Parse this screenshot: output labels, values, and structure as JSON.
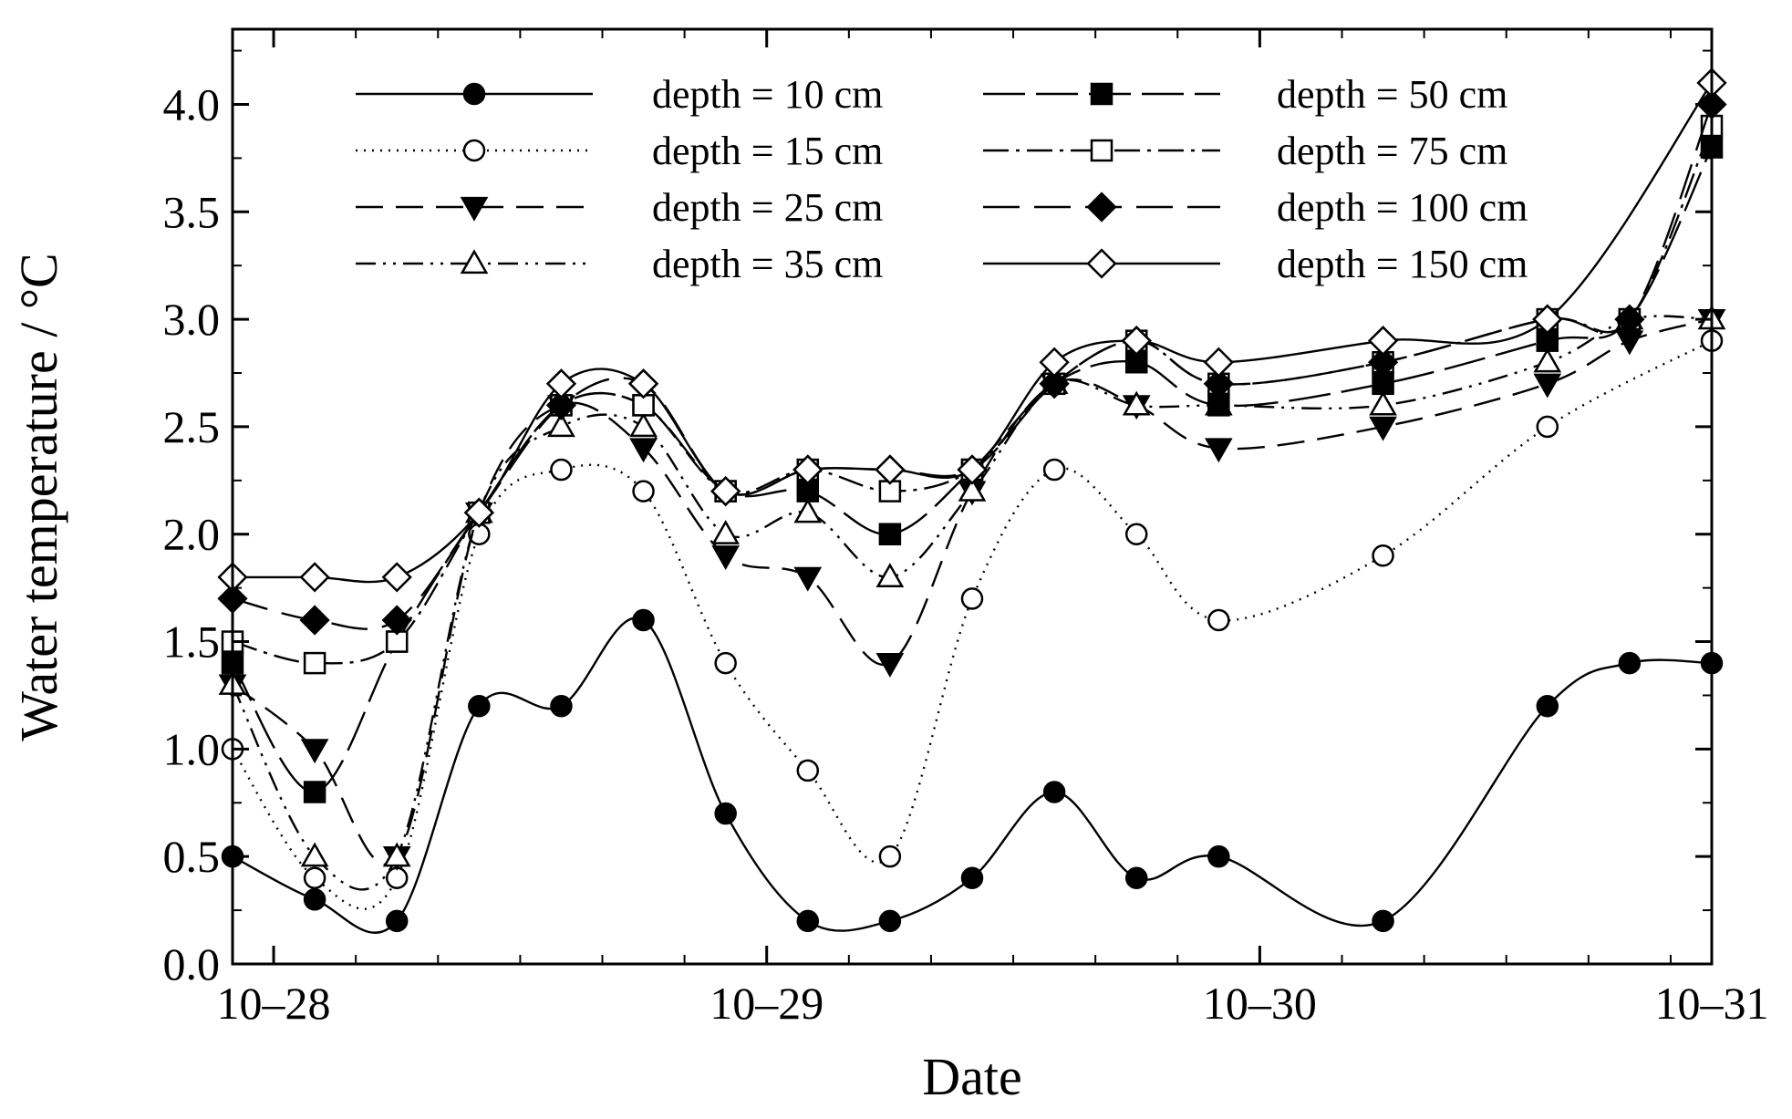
{
  "chart_data": {
    "type": "line",
    "title": "",
    "xlabel": "Date",
    "ylabel": "Water temperature / °C",
    "xlim": [
      -0.25,
      8.75
    ],
    "ylim": [
      0.0,
      4.35
    ],
    "x_ticks": [
      {
        "value": 0.0,
        "label": "10–28"
      },
      {
        "value": 3.0,
        "label": "10–29"
      },
      {
        "value": 6.0,
        "label": "10–30"
      },
      {
        "value": 9.0,
        "label": "10–31"
      }
    ],
    "y_ticks": [
      {
        "value": 0.0,
        "label": "0.0"
      },
      {
        "value": 0.5,
        "label": "0.5"
      },
      {
        "value": 1.0,
        "label": "1.0"
      },
      {
        "value": 1.5,
        "label": "1.5"
      },
      {
        "value": 2.0,
        "label": "2.0"
      },
      {
        "value": 2.5,
        "label": "2.5"
      },
      {
        "value": 3.0,
        "label": "3.0"
      },
      {
        "value": 3.5,
        "label": "3.5"
      },
      {
        "value": 4.0,
        "label": "4.0"
      }
    ],
    "grid": false,
    "legend_position": "top",
    "series": [
      {
        "name": "depth = 10 cm",
        "marker": "circle-filled",
        "dash": "",
        "x": [
          -0.25,
          0.25,
          0.75,
          1.25,
          1.75,
          2.25,
          2.75,
          3.25,
          3.75,
          4.25,
          4.75,
          5.25,
          5.75,
          6.75,
          7.75,
          8.25,
          8.75
        ],
        "y": [
          0.5,
          0.3,
          0.2,
          1.2,
          1.2,
          1.6,
          0.7,
          0.2,
          0.2,
          0.4,
          0.8,
          0.4,
          0.5,
          0.2,
          1.2,
          1.4,
          1.4
        ]
      },
      {
        "name": "depth = 15 cm",
        "marker": "circle-open",
        "dash": "2,7",
        "x": [
          -0.25,
          0.25,
          0.75,
          1.25,
          1.75,
          2.25,
          2.75,
          3.25,
          3.75,
          4.25,
          4.75,
          5.25,
          5.75,
          6.75,
          7.75,
          8.75
        ],
        "y": [
          1.0,
          0.4,
          0.4,
          2.0,
          2.3,
          2.2,
          1.4,
          0.9,
          0.5,
          1.7,
          2.3,
          2.0,
          1.6,
          1.9,
          2.5,
          2.9
        ]
      },
      {
        "name": "depth = 25 cm",
        "marker": "triangle-down-filled",
        "dash": "30,14",
        "x": [
          -0.25,
          0.25,
          0.75,
          1.25,
          1.75,
          2.25,
          2.75,
          3.25,
          3.75,
          4.25,
          4.75,
          5.25,
          5.75,
          6.75,
          7.75,
          8.25,
          8.75
        ],
        "y": [
          1.3,
          1.0,
          0.5,
          2.1,
          2.6,
          2.4,
          1.9,
          1.8,
          1.4,
          2.2,
          2.7,
          2.6,
          2.4,
          2.5,
          2.7,
          2.9,
          3.0
        ]
      },
      {
        "name": "depth = 35 cm",
        "marker": "triangle-up-open",
        "dash": "22,8,3,8,3,8",
        "x": [
          -0.25,
          0.25,
          0.75,
          1.25,
          1.75,
          2.25,
          2.75,
          3.25,
          3.75,
          4.25,
          4.75,
          5.25,
          5.75,
          6.75,
          7.75,
          8.25,
          8.75
        ],
        "y": [
          1.3,
          0.5,
          0.5,
          2.1,
          2.5,
          2.5,
          2.0,
          2.1,
          1.8,
          2.2,
          2.7,
          2.6,
          2.6,
          2.6,
          2.8,
          3.0,
          3.0
        ]
      },
      {
        "name": "depth = 50 cm",
        "marker": "square-filled",
        "dash": "46,12",
        "x": [
          -0.25,
          0.25,
          0.75,
          1.25,
          1.75,
          2.25,
          2.75,
          3.25,
          3.75,
          4.25,
          4.75,
          5.25,
          5.75,
          6.75,
          7.75,
          8.25,
          8.75
        ],
        "y": [
          1.4,
          0.8,
          1.5,
          2.1,
          2.6,
          2.6,
          2.2,
          2.2,
          2.0,
          2.3,
          2.7,
          2.8,
          2.6,
          2.7,
          2.9,
          3.0,
          3.8
        ]
      },
      {
        "name": "depth = 75 cm",
        "marker": "square-open",
        "dash": "28,8,4,8",
        "x": [
          -0.25,
          0.25,
          0.75,
          1.25,
          1.75,
          2.25,
          2.75,
          3.25,
          3.75,
          4.25,
          4.75,
          5.25,
          5.75,
          6.75,
          7.75,
          8.25,
          8.75
        ],
        "y": [
          1.5,
          1.4,
          1.5,
          2.1,
          2.6,
          2.6,
          2.2,
          2.3,
          2.2,
          2.3,
          2.7,
          2.9,
          2.7,
          2.8,
          3.0,
          3.0,
          3.9
        ]
      },
      {
        "name": "depth = 100 cm",
        "marker": "diamond-filled",
        "dash": "40,16",
        "x": [
          -0.25,
          0.25,
          0.75,
          1.25,
          1.75,
          2.25,
          2.75,
          3.25,
          3.75,
          4.25,
          4.75,
          5.25,
          5.75,
          6.75,
          7.75,
          8.25,
          8.75
        ],
        "y": [
          1.7,
          1.6,
          1.6,
          2.1,
          2.6,
          2.7,
          2.2,
          2.3,
          2.3,
          2.3,
          2.7,
          2.9,
          2.7,
          2.8,
          3.0,
          3.0,
          4.0
        ]
      },
      {
        "name": "depth = 150 cm",
        "marker": "diamond-open",
        "dash": "",
        "x": [
          -0.25,
          0.25,
          0.75,
          1.25,
          1.75,
          2.25,
          2.75,
          3.25,
          3.75,
          4.25,
          4.75,
          5.25,
          5.75,
          6.75,
          7.75,
          8.75
        ],
        "y": [
          1.8,
          1.8,
          1.8,
          2.1,
          2.7,
          2.7,
          2.2,
          2.3,
          2.3,
          2.3,
          2.8,
          2.9,
          2.8,
          2.9,
          3.0,
          4.1
        ]
      }
    ]
  }
}
